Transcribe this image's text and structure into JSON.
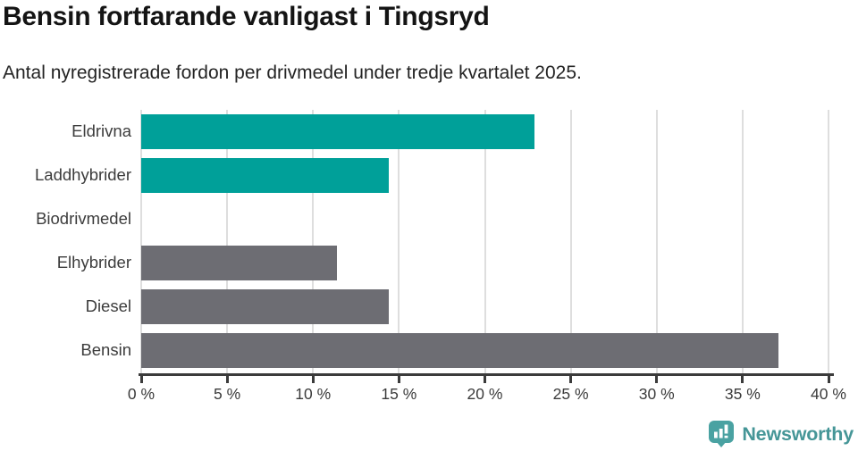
{
  "title": "Bensin fortfarande vanligast i Tingsryd",
  "subtitle": "Antal nyregistrerade fordon per drivmedel under tredje kvartalet 2025.",
  "chart_data": {
    "type": "bar",
    "orientation": "horizontal",
    "title": "Bensin fortfarande vanligast i Tingsryd",
    "subtitle": "Antal nyregistrerade fordon per drivmedel under tredje kvartalet 2025.",
    "categories": [
      "Eldrivna",
      "Laddhybrider",
      "Biodrivmedel",
      "Elhybrider",
      "Diesel",
      "Bensin"
    ],
    "values": [
      22.9,
      14.4,
      0,
      11.4,
      14.4,
      37.1
    ],
    "unit": "%",
    "xlabel": "",
    "ylabel": "",
    "xlim": [
      0,
      40
    ],
    "x_ticks": [
      0,
      5,
      10,
      15,
      20,
      25,
      30,
      35,
      40
    ],
    "x_tick_labels": [
      "0 %",
      "5 %",
      "10 %",
      "15 %",
      "20 %",
      "25 %",
      "30 %",
      "35 %",
      "40 %"
    ],
    "bar_colors": [
      "#00A099",
      "#00A099",
      "#00A099",
      "#6D6D73",
      "#6D6D73",
      "#6D6D73"
    ],
    "grid": true,
    "legend": false
  },
  "colors": {
    "teal_bar": "#00A099",
    "gray_bar": "#6D6D73",
    "gridline": "#DEDEDE",
    "axis": "#3B3B3B",
    "title_text": "#141414",
    "label_text": "#3C3C3C",
    "logo_bubble": "#4AA2A2",
    "logo_text": "#459697"
  },
  "footer": {
    "brand": "Newsworthy",
    "logo_icon": "bar-chart-speech-bubble-icon"
  }
}
